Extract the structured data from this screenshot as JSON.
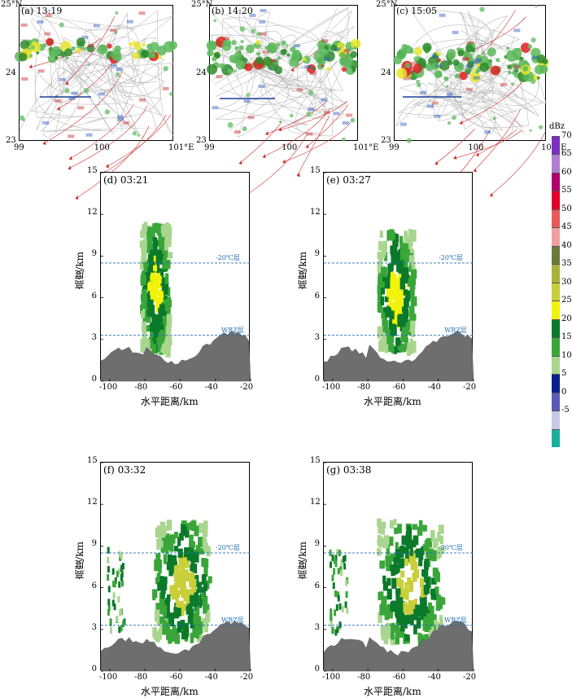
{
  "maps": [
    {
      "id": "a",
      "label": "(a) 13:19",
      "lat_top": "25°N",
      "lat_mid": "24",
      "lat_bot": "23",
      "lon_ticks": [
        "99",
        "100",
        "101°E"
      ]
    },
    {
      "id": "b",
      "label": "(b) 14:20",
      "lat_top": "25°N",
      "lat_mid": "24",
      "lat_bot": "23",
      "lon_ticks": [
        "99",
        "100",
        "101°E"
      ]
    },
    {
      "id": "c",
      "label": "(c) 15:05",
      "lat_top": "25°N",
      "lat_mid": "24",
      "lat_bot": "23",
      "lon_ticks": [
        "99",
        "100",
        "101°E"
      ]
    }
  ],
  "sections": [
    {
      "id": "d",
      "label": "(d) 03:21"
    },
    {
      "id": "e",
      "label": "(e) 03:27"
    },
    {
      "id": "f",
      "label": "(f) 03:32"
    },
    {
      "id": "g",
      "label": "(g) 03:38"
    }
  ],
  "section_axes": {
    "xlabel": "水平距离/km",
    "ylabel": "高度/km",
    "x_ticks": [
      "-100",
      "-80",
      "-60",
      "-40",
      "-20"
    ],
    "y_ticks": [
      "0",
      "3",
      "6",
      "9",
      "12",
      "15"
    ],
    "ref_minus20": "-20℃层",
    "ref_wbz": "WBZ层"
  },
  "colorbar": {
    "unit": "dBz",
    "levels": [
      "70",
      "65",
      "60",
      "55",
      "50",
      "45",
      "40",
      "35",
      "30",
      "25",
      "20",
      "15",
      "10",
      "5",
      "0",
      "-5"
    ],
    "colors": [
      "#7b2fbf",
      "#b07fcf",
      "#b0006c",
      "#e2002a",
      "#e85a5a",
      "#f0a0a0",
      "#6b7a3a",
      "#a9b23a",
      "#c8cf3a",
      "#f2f20a",
      "#0a7a2a",
      "#3aa63a",
      "#a9d58f",
      "#0a1f8f",
      "#5a5ab8",
      "#c8c8e6",
      "#1ab0a0"
    ]
  }
}
